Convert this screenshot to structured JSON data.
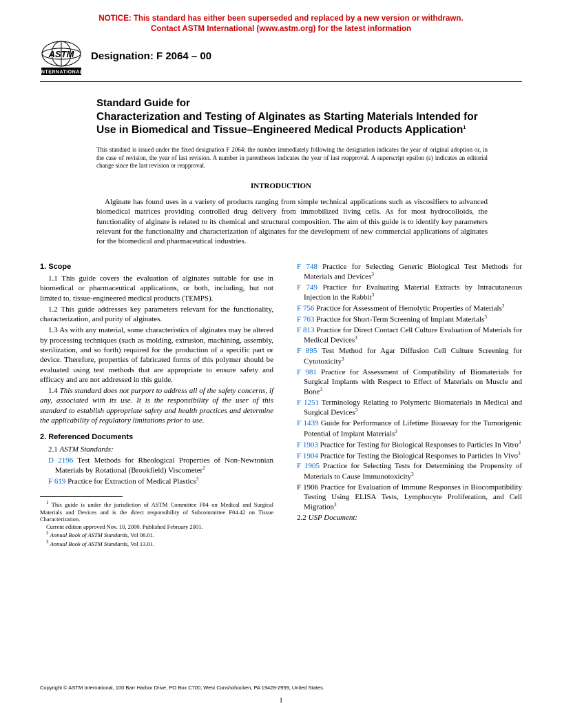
{
  "notice": {
    "line1": "NOTICE: This standard has either been superseded and replaced by a new version or withdrawn.",
    "line2": "Contact ASTM International (www.astm.org) for the latest information",
    "color": "#cc0000"
  },
  "designation": "Designation: F 2064 – 00",
  "title": {
    "line1": "Standard Guide for",
    "main": "Characterization and Testing of Alginates as Starting Materials Intended for Use in Biomedical and Tissue–Engineered Medical Products Application",
    "sup": "1"
  },
  "issue_note": "This standard is issued under the fixed designation F 2064; the number immediately following the designation indicates the year of original adoption or, in the case of revision, the year of last revision. A number in parentheses indicates the year of last reapproval. A superscript epsilon (ε) indicates an editorial change since the last revision or reapproval.",
  "intro_heading": "INTRODUCTION",
  "intro_text": "Alginate has found uses in a variety of products ranging from simple technical applications such as viscosifiers to advanced biomedical matrices providing controlled drug delivery from immobilized living cells. As for most hydrocolloids, the functionality of alginate is related to its chemical and structural composition. The aim of this guide is to identify key parameters relevant for the functionality and characterization of alginates for the development of new commercial applications of alginates for the biomedical and pharmaceutical industries.",
  "scope": {
    "heading": "1. Scope",
    "p1": "1.1 This guide covers the evaluation of alginates suitable for use in biomedical or pharmaceutical applications, or both, including, but not limited to, tissue-engineered medical products (TEMPS).",
    "p2": "1.2 This guide addresses key parameters relevant for the functionality, characterization, and purity of alginates.",
    "p3": "1.3 As with any material, some characteristics of alginates may be altered by processing techniques (such as molding, extrusion, machining, assembly, sterilization, and so forth) required for the production of a specific part or device. Therefore, properties of fabricated forms of this polymer should be evaluated using test methods that are appropriate to ensure safety and efficacy and are not addressed in this guide.",
    "p4_a": "1.4 ",
    "p4_b": "This standard does not purport to address all of the safety concerns, if any, associated with its use. It is the responsibility of the user of this standard to establish appropriate safety and health practices and determine the applicability of regulatory limitations prior to use."
  },
  "refs": {
    "heading": "2. Referenced Documents",
    "sub1_a": "2.1 ",
    "sub1_b": "ASTM Standards:",
    "left": [
      {
        "code": "D 2196",
        "text": "Test Methods for Rheological Properties of Non-Newtonian Materials by Rotational (Brookfield) Viscometer",
        "sup": "2",
        "link": true
      },
      {
        "code": "F 619",
        "text": "Practice for Extraction of Medical Plastics",
        "sup": "3",
        "link": true
      }
    ],
    "right": [
      {
        "code": "F 748",
        "text": "Practice for Selecting Generic Biological Test Methods for Materials and Devices",
        "sup": "3",
        "link": true
      },
      {
        "code": "F 749",
        "text": "Practice for Evaluating Material Extracts by Intracutaneous Injection in the Rabbit",
        "sup": "3",
        "link": true
      },
      {
        "code": "F 756",
        "text": "Practice for Assessment of Hemolytic Properties of Materials",
        "sup": "3",
        "link": true
      },
      {
        "code": "F 763",
        "text": "Practice for Short-Term Screening of Implant Materials",
        "sup": "3",
        "link": true
      },
      {
        "code": "F 813",
        "text": "Practice for Direct Contact Cell Culture Evaluation of Materials for Medical Devices",
        "sup": "3",
        "link": true
      },
      {
        "code": "F 895",
        "text": "Test Method for Agar Diffusion Cell Culture Screening for Cytotoxicity",
        "sup": "3",
        "link": true
      },
      {
        "code": "F 981",
        "text": "Practice for Assessment of Compatibility of Biomaterials for Surgical Implants with Respect to Effect of Materials on Muscle and Bone",
        "sup": "3",
        "link": true
      },
      {
        "code": "F 1251",
        "text": "Terminology Relating to Polymeric Biomaterials in Medical and Surgical Devices",
        "sup": "3",
        "link": true
      },
      {
        "code": "F 1439",
        "text": "Guide for Performance of Lifetime Bioassay for the Tumorigenic Potential of Implant Materials",
        "sup": "3",
        "link": true
      },
      {
        "code": "F 1903",
        "text": "Practice for Testing for Biological Responses to Particles In Vitro",
        "sup": "3",
        "link": true
      },
      {
        "code": "F 1904",
        "text": "Practice for Testing the Biological Responses to Particles In Vivo",
        "sup": "3",
        "link": true
      },
      {
        "code": "F 1905",
        "text": "Practice for Selecting Tests for Determining the Propensity of Materials to Cause Immunotoxicity",
        "sup": "3",
        "link": true
      },
      {
        "code": "F 1906",
        "text": "Practice for Evaluation of Immune Responses in Biocompatibility Testing Using ELISA Tests, Lymphocyte Proliferation, and Cell Migration",
        "sup": "3",
        "link": false
      }
    ],
    "sub2_a": "2.2 ",
    "sub2_b": "USP Document:"
  },
  "footnotes": {
    "f1": "This guide is under the jurisdiction of ASTM Committee F04 on Medical and Surgical Materials and Devices and is the direct responsibility of Subcommittee F04.42 on Tissue Characterization.",
    "f1b": "Current edition approved Nov. 10, 2000. Published February 2001.",
    "f2_a": "Annual Book of ASTM Standards",
    "f2_b": ", Vol 06.01.",
    "f3_a": "Annual Book of ASTM Standards",
    "f3_b": ", Vol 13.01."
  },
  "copyright": "Copyright © ASTM International, 100 Barr Harbor Drive, PO Box C700, West Conshohocken, PA 19428-2959, United States.",
  "page_num": "1",
  "link_color": "#0066cc"
}
